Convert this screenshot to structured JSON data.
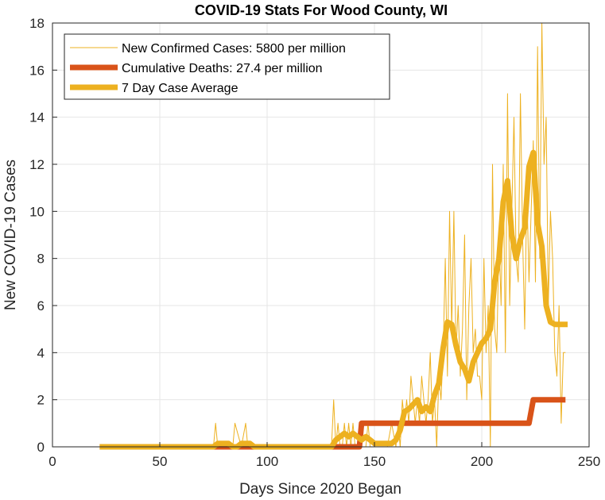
{
  "chart_data": {
    "type": "line",
    "title": "COVID-19 Stats For Wood County, WI",
    "xlabel": "Days Since 2020 Began",
    "ylabel": "New COVID-19 Cases",
    "xlim": [
      0,
      250
    ],
    "ylim": [
      0,
      18
    ],
    "xticks": [
      0,
      50,
      100,
      150,
      200,
      250
    ],
    "yticks": [
      0,
      2,
      4,
      6,
      8,
      10,
      12,
      14,
      16,
      18
    ],
    "grid": true,
    "legend_position": "top-left",
    "series": [
      {
        "name": "New Confirmed Cases: 5800 per million",
        "color": "#EDB120",
        "style": "thin",
        "x": [
          22,
          60,
          75,
          76,
          77,
          80,
          84,
          85,
          88,
          90,
          91,
          93,
          95,
          100,
          130,
          131,
          132,
          133,
          134,
          135,
          136,
          137,
          138,
          139,
          140,
          141,
          142,
          143,
          144,
          145,
          146,
          147,
          148,
          150,
          152,
          154,
          156,
          158,
          160,
          161,
          162,
          163,
          164,
          165,
          166,
          167,
          168,
          169,
          170,
          171,
          172,
          173,
          174,
          175,
          176,
          177,
          178,
          179,
          180,
          181,
          182,
          183,
          184,
          185,
          186,
          187,
          188,
          189,
          190,
          191,
          192,
          193,
          194,
          195,
          196,
          197,
          198,
          199,
          200,
          201,
          202,
          203,
          204,
          205,
          206,
          207,
          208,
          209,
          210,
          211,
          212,
          213,
          214,
          215,
          216,
          217,
          218,
          219,
          220,
          221,
          222,
          223,
          224,
          225,
          226,
          227,
          228,
          229,
          230,
          231,
          232,
          233,
          234,
          235,
          236,
          237,
          238,
          239
        ],
        "values": [
          0,
          0,
          0,
          1,
          0,
          0,
          0,
          1,
          0,
          1,
          0,
          0,
          0,
          0,
          0,
          2,
          0,
          1,
          0,
          0,
          1,
          0,
          1,
          0,
          1,
          0,
          0,
          1,
          0,
          0,
          0,
          1,
          0,
          0,
          0,
          0,
          0,
          1,
          0,
          1,
          0,
          2,
          1,
          2,
          1,
          3,
          2,
          1,
          2,
          1,
          3,
          2,
          1,
          2,
          4,
          1,
          2,
          0,
          3,
          2,
          4,
          8,
          3,
          10,
          5,
          10,
          4,
          6,
          3,
          5,
          9,
          2,
          6,
          8,
          4,
          5,
          3,
          3,
          2,
          8,
          4,
          6,
          0,
          12,
          5,
          4,
          9,
          6,
          12,
          4,
          15,
          6,
          10,
          14,
          8,
          7,
          15,
          9,
          5,
          11,
          7,
          10,
          13,
          7,
          17,
          8,
          18,
          12,
          14,
          6,
          10,
          8,
          4,
          3,
          6,
          1,
          4,
          4
        ]
      },
      {
        "name": "Cumulative Deaths: 27.4 per million",
        "color": "#D95319",
        "style": "thick",
        "x": [
          22,
          143,
          144,
          222,
          224,
          239
        ],
        "values": [
          0,
          0,
          1,
          1,
          2,
          2
        ]
      },
      {
        "name": "7 Day Case Average",
        "color": "#EDB120",
        "style": "thick",
        "x": [
          22,
          75,
          77,
          80,
          82,
          84,
          86,
          88,
          90,
          92,
          94,
          96,
          130,
          132,
          134,
          136,
          138,
          140,
          142,
          144,
          146,
          148,
          150,
          152,
          154,
          156,
          158,
          160,
          162,
          164,
          166,
          168,
          170,
          172,
          174,
          176,
          178,
          180,
          182,
          184,
          186,
          188,
          190,
          192,
          194,
          196,
          198,
          200,
          202,
          204,
          206,
          208,
          210,
          212,
          214,
          216,
          218,
          220,
          222,
          224,
          226,
          228,
          230,
          232,
          234,
          236,
          238,
          240
        ],
        "values": [
          0,
          0,
          0.14,
          0.14,
          0.14,
          0,
          0,
          0.14,
          0.14,
          0.14,
          0,
          0,
          0,
          0.29,
          0.43,
          0.57,
          0.43,
          0.57,
          0.43,
          0.29,
          0.43,
          0.29,
          0.14,
          0.14,
          0.14,
          0.14,
          0.14,
          0.29,
          0.71,
          1.5,
          1.6,
          1.8,
          2.0,
          1.5,
          1.7,
          1.5,
          2.2,
          2.7,
          4.2,
          5.3,
          5.2,
          4.3,
          3.6,
          3.3,
          2.8,
          3.6,
          4.0,
          4.4,
          4.6,
          5.0,
          7.0,
          8.0,
          10.4,
          11.3,
          9.0,
          8.0,
          8.8,
          9.3,
          11.9,
          12.5,
          9.5,
          8.5,
          6.0,
          5.3,
          5.2,
          5.2,
          5.2,
          5.2
        ]
      }
    ]
  }
}
